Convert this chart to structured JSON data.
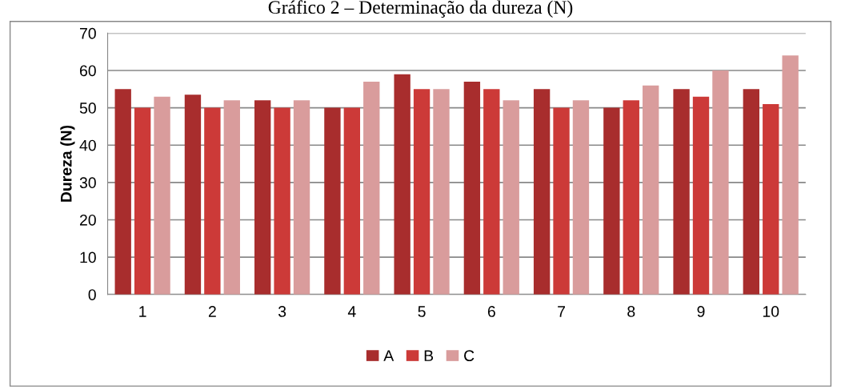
{
  "chart_data": {
    "type": "bar",
    "title": "Gráfico 2 – Determinação da dureza (N)",
    "ylabel": "Dureza (N)",
    "categories": [
      "1",
      "2",
      "3",
      "4",
      "5",
      "6",
      "7",
      "8",
      "9",
      "10"
    ],
    "series": [
      {
        "name": "A",
        "color": "#a82d2d",
        "values": [
          55,
          53.5,
          52,
          50,
          59,
          57,
          55,
          50,
          55,
          55
        ]
      },
      {
        "name": "B",
        "color": "#cc3a38",
        "values": [
          50,
          50,
          50,
          50,
          55,
          55,
          50,
          52,
          53,
          51
        ]
      },
      {
        "name": "C",
        "color": "#d99c9c",
        "values": [
          53,
          52,
          52,
          57,
          55,
          52,
          52,
          56,
          60,
          64
        ]
      }
    ],
    "ylim": [
      0,
      70
    ],
    "yticks": [
      0,
      10,
      20,
      30,
      40,
      50,
      60,
      70
    ],
    "grid": "y",
    "legend": "bottom"
  }
}
